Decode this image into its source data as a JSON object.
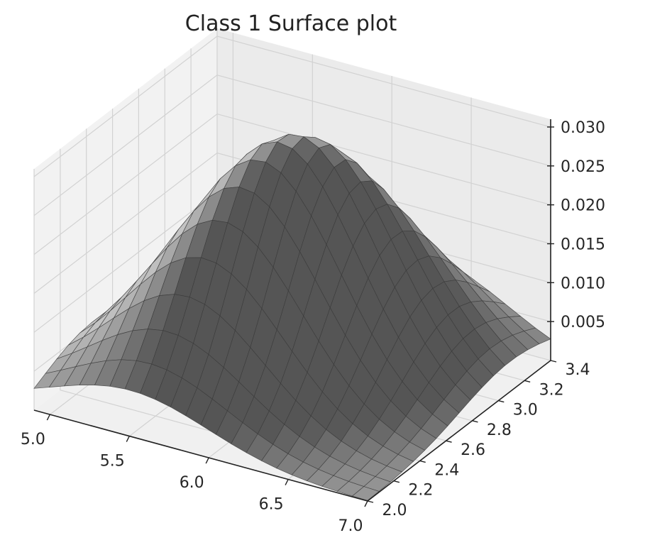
{
  "chart_data": {
    "type": "surface3d",
    "title": "Class 1 Surface plot",
    "xlabel": "",
    "ylabel": "",
    "zlabel": "",
    "x_ticks": [
      "5.0",
      "5.5",
      "6.0",
      "6.5",
      "7.0"
    ],
    "y_ticks": [
      "2.0",
      "2.2",
      "2.4",
      "2.6",
      "2.8",
      "3.0",
      "3.2",
      "3.4"
    ],
    "z_ticks": [
      "0.005",
      "0.010",
      "0.015",
      "0.020",
      "0.025",
      "0.030"
    ],
    "x_range": [
      4.9,
      7.0
    ],
    "y_range": [
      2.0,
      3.4
    ],
    "z_range": [
      0.0,
      0.031
    ],
    "peak": {
      "x": 5.9,
      "y": 2.75,
      "z": 0.031
    },
    "grid": true,
    "surface_color": "#a9a9a9",
    "edge_color": "#3a3a3a"
  }
}
